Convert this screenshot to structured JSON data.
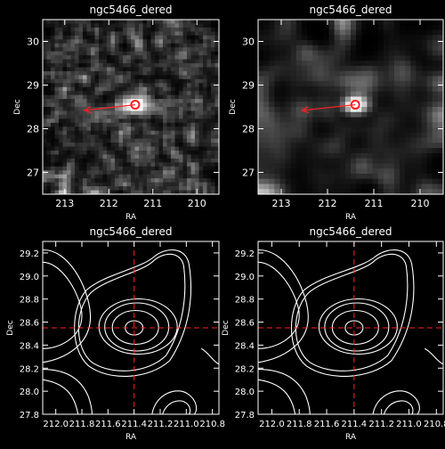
{
  "chart_data": [
    {
      "type": "heatmap",
      "title": "ngc5466_dered",
      "xlabel": "RA",
      "ylabel": "Dec",
      "xlim": [
        213.5,
        209.5
      ],
      "ylim": [
        26.5,
        30.5
      ],
      "xticks": [
        213,
        212,
        211,
        210
      ],
      "yticks": [
        27,
        28,
        29,
        30
      ],
      "xtick_labels": [
        "213",
        "212",
        "211",
        "210"
      ],
      "ytick_labels": [
        "27",
        "28",
        "29",
        "30"
      ],
      "colormap": "grayscale",
      "smoothing": "low",
      "peak": {
        "x": 211.4,
        "y": 28.55
      },
      "arrow": {
        "from": [
          211.4,
          28.55
        ],
        "to": [
          212.55,
          28.42
        ],
        "color": "#ff2020"
      }
    },
    {
      "type": "heatmap",
      "title": "ngc5466_dered",
      "xlabel": "RA",
      "ylabel": "Dec",
      "xlim": [
        213.5,
        209.5
      ],
      "ylim": [
        26.5,
        30.5
      ],
      "xticks": [
        213,
        212,
        211,
        210
      ],
      "yticks": [
        27,
        28,
        29,
        30
      ],
      "xtick_labels": [
        "213",
        "212",
        "211",
        "210"
      ],
      "ytick_labels": [
        "27",
        "28",
        "29",
        "30"
      ],
      "colormap": "grayscale",
      "smoothing": "high",
      "peak": {
        "x": 211.4,
        "y": 28.55
      },
      "arrow": {
        "from": [
          211.4,
          28.55
        ],
        "to": [
          212.55,
          28.42
        ],
        "color": "#ff2020"
      }
    },
    {
      "type": "contour",
      "title": "ngc5466_dered",
      "xlabel": "RA",
      "ylabel": "Dec",
      "xlim": [
        212.1,
        210.75
      ],
      "ylim": [
        27.8,
        29.3
      ],
      "xticks": [
        212.0,
        211.8,
        211.6,
        211.4,
        211.2,
        211.0,
        210.8
      ],
      "yticks": [
        27.8,
        28.0,
        28.2,
        28.4,
        28.6,
        28.8,
        29.0,
        29.2
      ],
      "xtick_labels": [
        "212.0",
        "211.8",
        "211.6",
        "211.4",
        "211.2",
        "211.0",
        "210.8"
      ],
      "ytick_labels": [
        "27.8",
        "28.0",
        "28.2",
        "28.4",
        "28.6",
        "28.8",
        "29.0",
        "29.2"
      ],
      "crosshair": {
        "x": 211.4,
        "y": 28.55,
        "color": "#ff2020"
      }
    },
    {
      "type": "contour",
      "title": "ngc5466_dered",
      "xlabel": "RA",
      "ylabel": "Dec",
      "xlim": [
        212.1,
        210.75
      ],
      "ylim": [
        27.8,
        29.3
      ],
      "xticks": [
        212.0,
        211.8,
        211.6,
        211.4,
        211.2,
        211.0,
        210.8
      ],
      "yticks": [
        27.8,
        28.0,
        28.2,
        28.4,
        28.6,
        28.8,
        29.0,
        29.2
      ],
      "xtick_labels": [
        "212.0",
        "211.8",
        "211.6",
        "211.4",
        "211.2",
        "211.0",
        "210.8"
      ],
      "ytick_labels": [
        "27.8",
        "28.0",
        "28.2",
        "28.4",
        "28.6",
        "28.8",
        "29.0",
        "29.2"
      ],
      "crosshair": {
        "x": 211.4,
        "y": 28.55,
        "color": "#ff2020"
      }
    }
  ]
}
